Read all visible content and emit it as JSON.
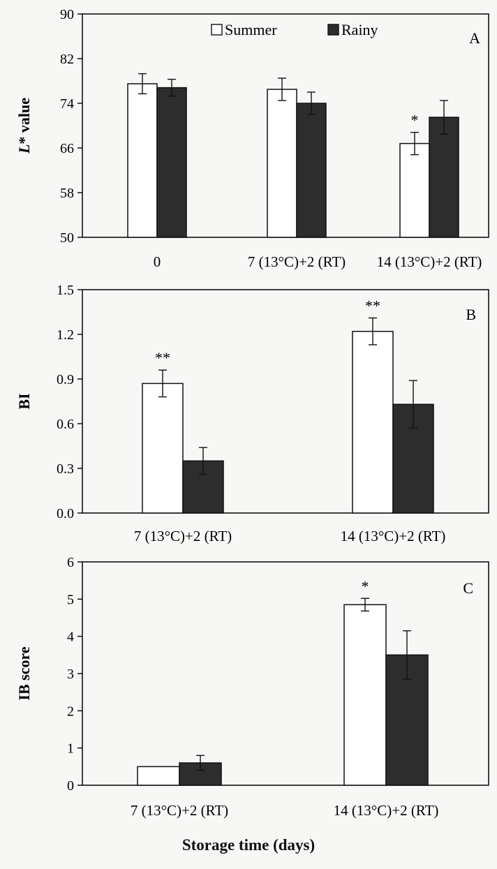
{
  "figure": {
    "xlabel": "Storage time (days)"
  },
  "chart_data": [
    {
      "type": "bar",
      "panel": "A",
      "ylabel": "L* value",
      "ylabel_italic": "L",
      "ylabel_rest": "* value",
      "ylim": [
        50,
        90
      ],
      "yticks": [
        50,
        58,
        66,
        74,
        82,
        90
      ],
      "categories": [
        "0",
        "7 (13°C)+2 (RT)",
        "14 (13°C)+2 (RT)"
      ],
      "series": [
        {
          "name": "Summer",
          "values": [
            77.5,
            76.5,
            66.8
          ],
          "errors": [
            1.8,
            2.0,
            2.0
          ]
        },
        {
          "name": "Rainy",
          "values": [
            76.8,
            74.0,
            71.5
          ],
          "errors": [
            1.5,
            2.0,
            3.0
          ]
        }
      ],
      "annotations": [
        {
          "category": 2,
          "series": 0,
          "text": "*"
        }
      ],
      "legend": "top-center",
      "colors": {
        "Summer": "#ffffff",
        "Rainy": "#2b2b2b"
      }
    },
    {
      "type": "bar",
      "panel": "B",
      "ylabel": "BI",
      "ylim": [
        0,
        1.5
      ],
      "yticks": [
        0.0,
        0.3,
        0.6,
        0.9,
        1.2,
        1.5
      ],
      "ytick_labels": [
        "0.0",
        "0.3",
        "0.6",
        "0.9",
        "1.2",
        "1.5"
      ],
      "categories": [
        "7 (13°C)+2 (RT)",
        "14 (13°C)+2 (RT)"
      ],
      "series": [
        {
          "name": "Summer",
          "values": [
            0.87,
            1.22
          ],
          "errors": [
            0.09,
            0.09
          ]
        },
        {
          "name": "Rainy",
          "values": [
            0.35,
            0.73
          ],
          "errors": [
            0.09,
            0.16
          ]
        }
      ],
      "annotations": [
        {
          "category": 0,
          "series": 0,
          "text": "**"
        },
        {
          "category": 1,
          "series": 0,
          "text": "**"
        }
      ]
    },
    {
      "type": "bar",
      "panel": "C",
      "ylabel": "IB score",
      "ylim": [
        0,
        6
      ],
      "yticks": [
        0,
        1,
        2,
        3,
        4,
        5,
        6
      ],
      "categories": [
        "7 (13°C)+2 (RT)",
        "14 (13°C)+2 (RT)"
      ],
      "series": [
        {
          "name": "Summer",
          "values": [
            0.5,
            4.85
          ],
          "errors": [
            0.0,
            0.17
          ]
        },
        {
          "name": "Rainy",
          "values": [
            0.6,
            3.5
          ],
          "errors": [
            0.2,
            0.65
          ]
        }
      ],
      "annotations": [
        {
          "category": 1,
          "series": 0,
          "text": "*"
        }
      ]
    }
  ]
}
